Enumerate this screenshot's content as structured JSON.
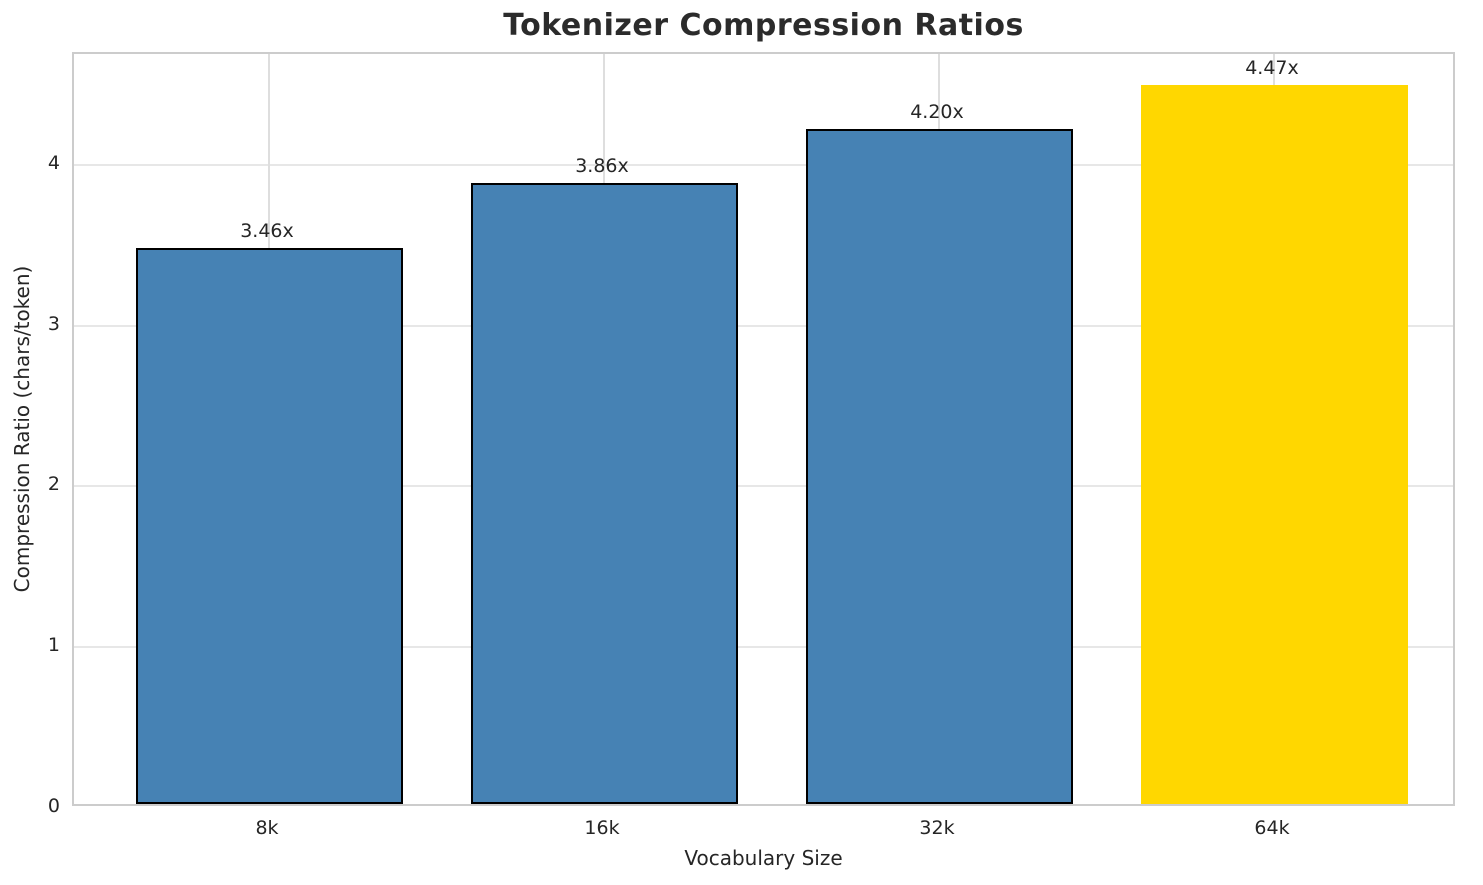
{
  "chart_data": {
    "type": "bar",
    "title": "Tokenizer Compression Ratios",
    "xlabel": "Vocabulary Size",
    "ylabel": "Compression Ratio (chars/token)",
    "categories": [
      "8k",
      "16k",
      "32k",
      "64k"
    ],
    "values": [
      3.46,
      3.86,
      4.2,
      4.47
    ],
    "bar_labels": [
      "3.46x",
      "3.86x",
      "4.20x",
      "4.47x"
    ],
    "bar_colors": [
      "#4682b4",
      "#4682b4",
      "#4682b4",
      "#ffd700"
    ],
    "bar_edge_colors": [
      "#000000",
      "#000000",
      "#000000",
      "none"
    ],
    "highlighted_category": "64k",
    "y_ticks": [
      "0",
      "1",
      "2",
      "3",
      "4"
    ],
    "ylim": [
      0,
      4.69
    ],
    "grid": true,
    "legend_position": "none",
    "colors": {
      "accent_blue": "#4682b4",
      "accent_gold": "#ffd700",
      "text": "#262626",
      "grid": "#e0e0e0",
      "frame": "#cccccc",
      "background": "#ffffff"
    }
  }
}
